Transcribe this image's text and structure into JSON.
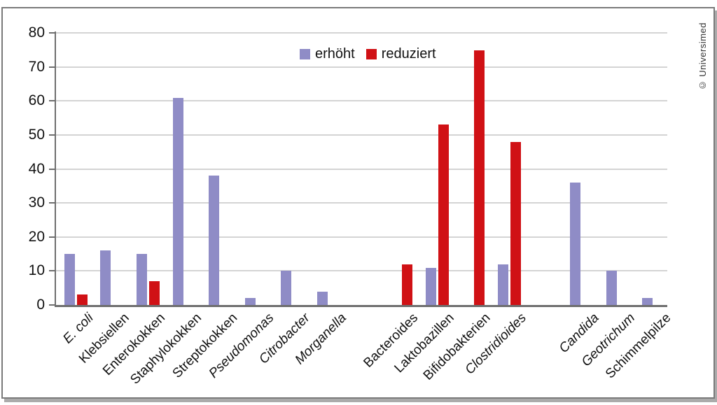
{
  "copyright": "© Universimed",
  "colors": {
    "erhoeht": "#8f8cc6",
    "reduziert": "#d01115",
    "grid": "#d4d4d4",
    "axis": "#6e6e6e",
    "border": "#7a7a7a",
    "text": "#111111"
  },
  "chart_data": {
    "type": "bar",
    "title": "",
    "xlabel": "",
    "ylabel": "",
    "ylim": [
      0,
      80
    ],
    "y_ticks": [
      0,
      10,
      20,
      30,
      40,
      50,
      60,
      70,
      80
    ],
    "grid": true,
    "legend_position": "top-center",
    "legend": [
      {
        "label": "erhöht",
        "color": "#8f8cc6"
      },
      {
        "label": "reduziert",
        "color": "#d01115"
      }
    ],
    "series": [
      {
        "name": "erhöht",
        "values": [
          15,
          16,
          15,
          61,
          38,
          2,
          10,
          4,
          null,
          11,
          null,
          12,
          36,
          10,
          2
        ]
      },
      {
        "name": "reduziert",
        "values": [
          3,
          null,
          7,
          null,
          null,
          null,
          null,
          null,
          12,
          53,
          75,
          48,
          null,
          null,
          null
        ]
      }
    ],
    "categories": [
      {
        "label": "E. coli",
        "italic": true,
        "group": 0,
        "erhoeht": 15,
        "reduziert": 3
      },
      {
        "label": "Klebsiellen",
        "italic": false,
        "group": 0,
        "erhoeht": 16,
        "reduziert": null
      },
      {
        "label": "Enterokokken",
        "italic": false,
        "group": 0,
        "erhoeht": 15,
        "reduziert": 7
      },
      {
        "label": "Staphylokokken",
        "italic": false,
        "group": 0,
        "erhoeht": 61,
        "reduziert": null
      },
      {
        "label": "Streptokokken",
        "italic": false,
        "group": 0,
        "erhoeht": 38,
        "reduziert": null
      },
      {
        "label": "Pseudomonas",
        "italic": true,
        "group": 0,
        "erhoeht": 2,
        "reduziert": null
      },
      {
        "label": "Citrobacter",
        "italic": true,
        "group": 0,
        "erhoeht": 10,
        "reduziert": null
      },
      {
        "label": "Morganella",
        "italic": true,
        "group": 0,
        "erhoeht": 4,
        "reduziert": null
      },
      {
        "label": "Bacteroides",
        "italic": false,
        "group": 1,
        "erhoeht": null,
        "reduziert": 12
      },
      {
        "label": "Laktobazillen",
        "italic": false,
        "group": 1,
        "erhoeht": 11,
        "reduziert": 53
      },
      {
        "label": "Bifidobakterien",
        "italic": false,
        "group": 1,
        "erhoeht": null,
        "reduziert": 75
      },
      {
        "label": "Clostridioides",
        "italic": true,
        "group": 1,
        "erhoeht": 12,
        "reduziert": 48
      },
      {
        "label": "Candida",
        "italic": true,
        "group": 2,
        "erhoeht": 36,
        "reduziert": null
      },
      {
        "label": "Geotrichum",
        "italic": true,
        "group": 2,
        "erhoeht": 10,
        "reduziert": null
      },
      {
        "label": "Schimmelpilze",
        "italic": false,
        "group": 2,
        "erhoeht": 2,
        "reduziert": null
      }
    ]
  }
}
